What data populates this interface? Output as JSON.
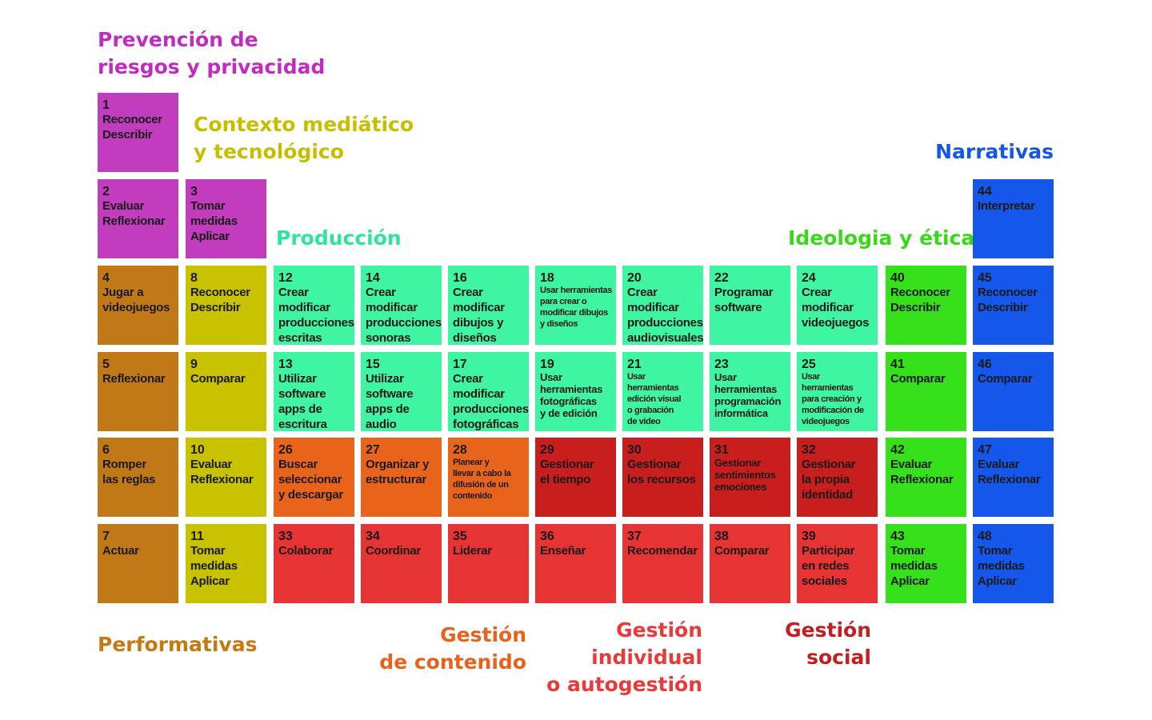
{
  "categories": {
    "prevencion": {
      "label": "Prevención de\nriesgos y privacidad",
      "color": "#c12cc0"
    },
    "contexto": {
      "label": "Contexto mediático\ny tecnológico",
      "color": "#c7be00"
    },
    "narrativas": {
      "label": "Narrativas",
      "color": "#1457e6"
    },
    "produccion": {
      "label": "Producción",
      "color": "#2ee69a"
    },
    "ideologia": {
      "label": "Ideologia y ética",
      "color": "#3ad81b"
    },
    "performativas": {
      "label": "Performativas",
      "color": "#c47a12"
    },
    "gestion_contenido": {
      "label": "Gestión\nde contenido",
      "color": "#e8621c"
    },
    "gestion_individual": {
      "label": "Gestión\nindividual\no autogestión",
      "color": "#e83a3a"
    },
    "gestion_social": {
      "label": "Gestión\nsocial",
      "color": "#c41e1e"
    }
  },
  "cells": {
    "c1": {
      "num": "1",
      "text": "Reconocer\nDescribir"
    },
    "c2": {
      "num": "2",
      "text": "Evaluar\nReflexionar"
    },
    "c3": {
      "num": "3",
      "text": "Tomar\nmedidas\nAplicar"
    },
    "c4": {
      "num": "4",
      "text": "Jugar a\nvideojuegos"
    },
    "c5": {
      "num": "5",
      "text": "Reflexionar"
    },
    "c6": {
      "num": "6",
      "text": "Romper\nlas reglas"
    },
    "c7": {
      "num": "7",
      "text": "Actuar"
    },
    "c8": {
      "num": "8",
      "text": "Reconocer\nDescribir"
    },
    "c9": {
      "num": "9",
      "text": "Comparar"
    },
    "c10": {
      "num": "10",
      "text": "Evaluar\nReflexionar"
    },
    "c11": {
      "num": "11",
      "text": "Tomar\nmedidas\nAplicar"
    },
    "c12": {
      "num": "12",
      "text": "Crear\nmodificar\nproducciones\nescritas"
    },
    "c13": {
      "num": "13",
      "text": "Utilizar\nsoftware\napps de\nescritura"
    },
    "c14": {
      "num": "14",
      "text": "Crear\nmodificar\nproducciones\nsonoras"
    },
    "c15": {
      "num": "15",
      "text": "Utilizar\nsoftware\napps de\naudio"
    },
    "c16": {
      "num": "16",
      "text": "Crear\nmodificar\ndibujos y\ndiseños"
    },
    "c17": {
      "num": "17",
      "text": "Crear\nmodificar\nproducciones\nfotográficas"
    },
    "c18": {
      "num": "18",
      "text": "Usar herramientas\npara crear o\nmodificar dibujos\ny diseños"
    },
    "c19": {
      "num": "19",
      "text": "Usar\nherramientas\nfotográficas\ny de edición"
    },
    "c20": {
      "num": "20",
      "text": "Crear\nmodificar\nproducciones\naudiovisuales"
    },
    "c21": {
      "num": "21",
      "text": "Usar\nherramientas\nedición visual\no grabación\nde video"
    },
    "c22": {
      "num": "22",
      "text": "Programar\nsoftware"
    },
    "c23": {
      "num": "23",
      "text": "Usar\nherramientas\nprogramación\ninformática"
    },
    "c24": {
      "num": "24",
      "text": "Crear\nmodificar\nvideojuegos"
    },
    "c25": {
      "num": "25",
      "text": "Usar\nherramientas\npara creación y\nmodificación de\nvideojuegos"
    },
    "c26": {
      "num": "26",
      "text": "Buscar\nseleccionar\ny descargar"
    },
    "c27": {
      "num": "27",
      "text": "Organizar y\nestructurar"
    },
    "c28": {
      "num": "28",
      "text": "Planear y\nllevar a cabo la\ndifusión de un\ncontenido"
    },
    "c29": {
      "num": "29",
      "text": "Gestionar\nel tiempo"
    },
    "c30": {
      "num": "30",
      "text": "Gestionar\nlos recursos"
    },
    "c31": {
      "num": "31",
      "text": "Gestionar\nsentimientos\nemociones"
    },
    "c32": {
      "num": "32",
      "text": "Gestionar\nla propia\nidentidad"
    },
    "c33": {
      "num": "33",
      "text": "Colaborar"
    },
    "c34": {
      "num": "34",
      "text": "Coordinar"
    },
    "c35": {
      "num": "35",
      "text": "Liderar"
    },
    "c36": {
      "num": "36",
      "text": "Enseñar"
    },
    "c37": {
      "num": "37",
      "text": "Recomendar"
    },
    "c38": {
      "num": "38",
      "text": "Comparar"
    },
    "c39": {
      "num": "39",
      "text": "Participar\nen redes\nsociales"
    },
    "c40": {
      "num": "40",
      "text": "Reconocer\nDescribir"
    },
    "c41": {
      "num": "41",
      "text": "Comparar"
    },
    "c42": {
      "num": "42",
      "text": "Evaluar\nReflexionar"
    },
    "c43": {
      "num": "43",
      "text": "Tomar\nmedidas\nAplicar"
    },
    "c44": {
      "num": "44",
      "text": "Interpretar"
    },
    "c45": {
      "num": "45",
      "text": "Reconocer\nDescribir"
    },
    "c46": {
      "num": "46",
      "text": "Comparar"
    },
    "c47": {
      "num": "47",
      "text": "Evaluar\nReflexionar"
    },
    "c48": {
      "num": "48",
      "text": "Tomar\nmedidas\nAplicar"
    }
  }
}
